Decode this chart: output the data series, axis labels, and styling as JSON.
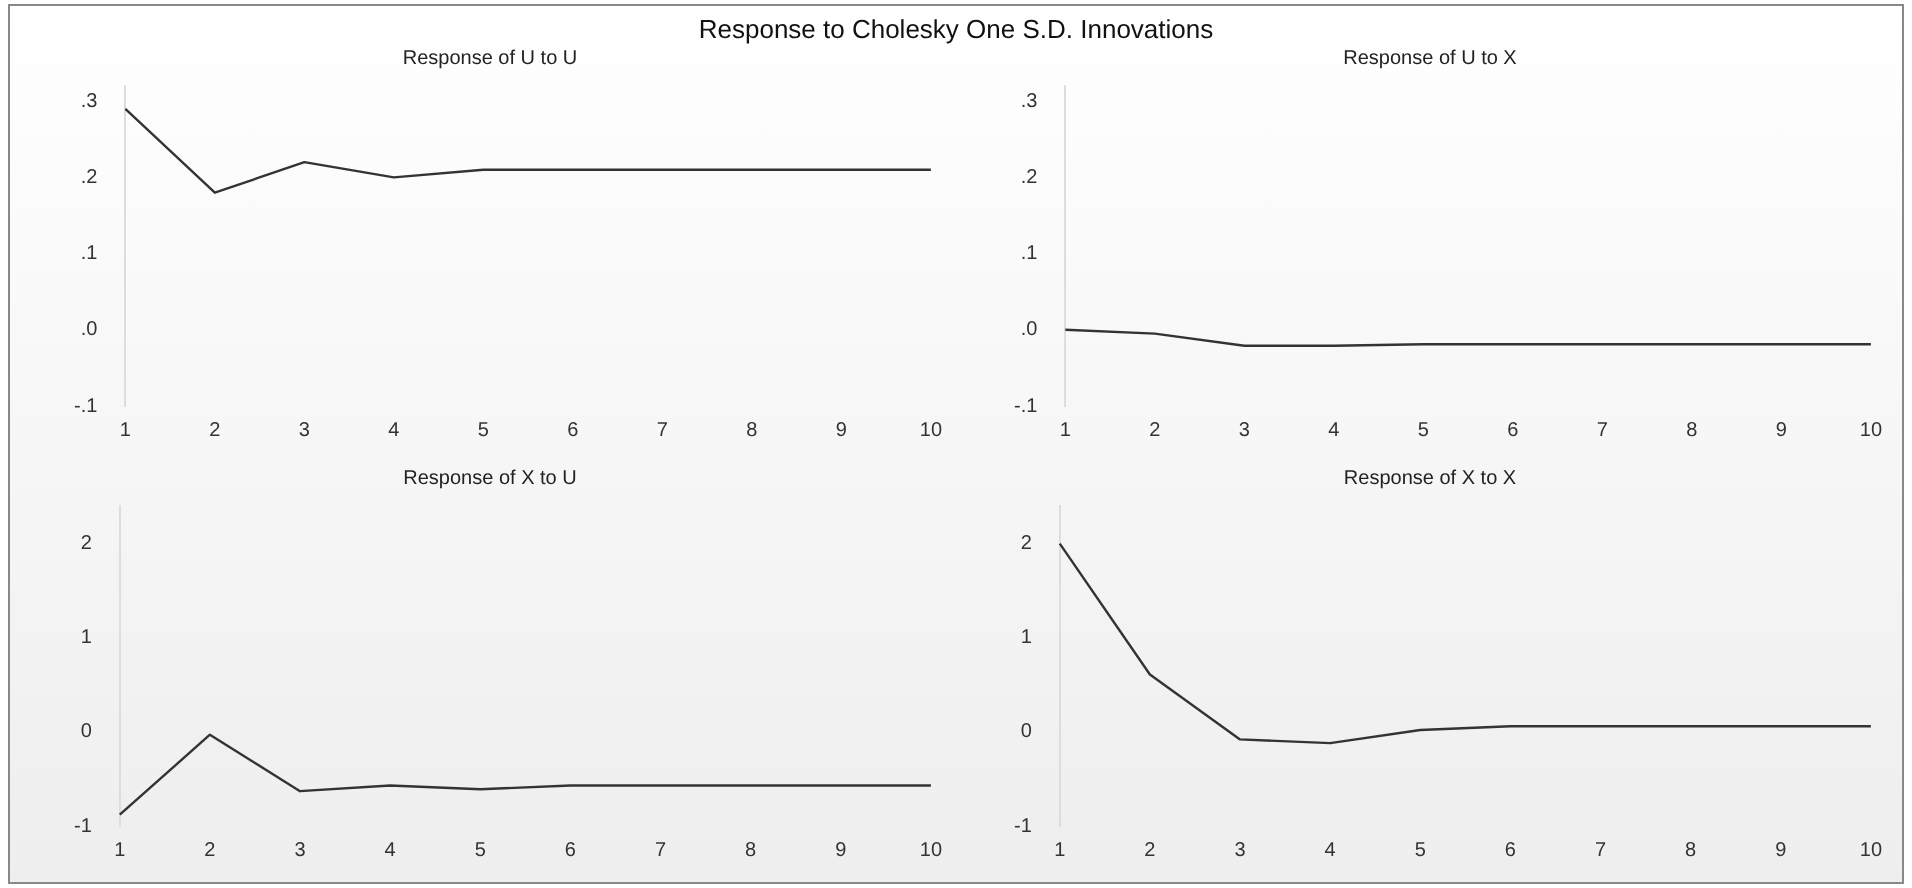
{
  "chart_data": [
    {
      "type": "line",
      "title": "Response of U to U",
      "annotations": [
        "Response to Cholesky One S.D. Innovations"
      ],
      "categories": [
        "1",
        "2",
        "3",
        "4",
        "5",
        "6",
        "7",
        "8",
        "9",
        "10"
      ],
      "series": [
        {
          "color": "#333333",
          "values": [
            0.29,
            0.18,
            0.22,
            0.2,
            0.21,
            0.21,
            0.21,
            0.21,
            0.21,
            0.21
          ]
        }
      ],
      "ylim": [
        -0.1,
        0.32
      ],
      "yticks": [
        {
          "value": -0.1,
          "label": "-.1"
        },
        {
          "value": 0,
          "label": ".0"
        },
        {
          "value": 0.1,
          "label": ".1"
        },
        {
          "value": 0.2,
          "label": ".2"
        },
        {
          "value": 0.3,
          "label": ".3"
        }
      ],
      "grid": false,
      "legend": false,
      "marker": "none"
    },
    {
      "type": "line",
      "title": "Response of U to X",
      "categories": [
        "1",
        "2",
        "3",
        "4",
        "5",
        "6",
        "7",
        "8",
        "9",
        "10"
      ],
      "series": [
        {
          "color": "#333333",
          "values": [
            0.0,
            -0.005,
            -0.021,
            -0.021,
            -0.019,
            -0.019,
            -0.019,
            -0.019,
            -0.019,
            -0.019
          ]
        }
      ],
      "ylim": [
        -0.1,
        0.32
      ],
      "yticks": [
        {
          "value": -0.1,
          "label": "-.1"
        },
        {
          "value": 0,
          "label": ".0"
        },
        {
          "value": 0.1,
          "label": ".1"
        },
        {
          "value": 0.2,
          "label": ".2"
        },
        {
          "value": 0.3,
          "label": ".3"
        }
      ],
      "grid": false,
      "legend": false,
      "marker": "none"
    },
    {
      "type": "line",
      "title": "Response of X to U",
      "categories": [
        "1",
        "2",
        "3",
        "4",
        "5",
        "6",
        "7",
        "8",
        "9",
        "10"
      ],
      "series": [
        {
          "color": "#333333",
          "values": [
            -0.88,
            -0.03,
            -0.63,
            -0.57,
            -0.61,
            -0.57,
            -0.57,
            -0.57,
            -0.57,
            -0.57
          ]
        }
      ],
      "ylim": [
        -1,
        2.4
      ],
      "yticks": [
        -1,
        0,
        1,
        2
      ],
      "grid": false,
      "legend": false,
      "marker": "none"
    },
    {
      "type": "line",
      "title": "Response of X to X",
      "categories": [
        "1",
        "2",
        "3",
        "4",
        "5",
        "6",
        "7",
        "8",
        "9",
        "10"
      ],
      "series": [
        {
          "color": "#333333",
          "values": [
            2.0,
            0.61,
            -0.08,
            -0.12,
            0.02,
            0.06,
            0.06,
            0.06,
            0.06,
            0.06
          ]
        }
      ],
      "ylim": [
        -1,
        2.4
      ],
      "yticks": [
        -1,
        0,
        1,
        2
      ],
      "grid": false,
      "legend": false,
      "marker": "none"
    }
  ]
}
